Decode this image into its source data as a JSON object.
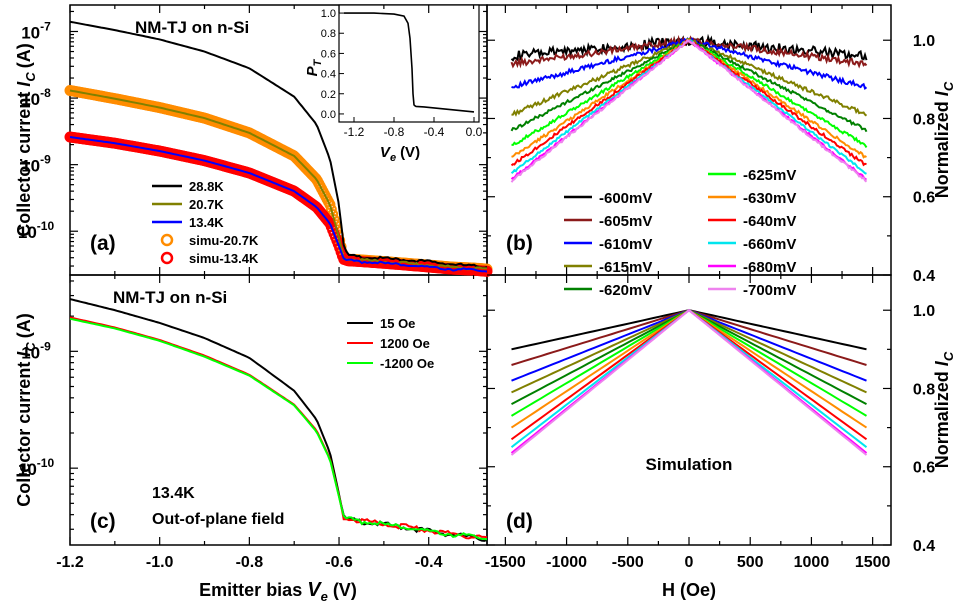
{
  "chart_data": [
    {
      "id": "a",
      "type": "line",
      "panel_label": "(a)",
      "annotation": "NM-TJ on n-Si",
      "ylabel": "Collector current",
      "ylabel_italic": "I",
      "ylabel_sub": "C",
      "ylabel_unit": "(A)",
      "yscale": "log",
      "xlim": [
        -1.2,
        -0.27
      ],
      "ylim": [
        2.2e-11,
        2.5e-07
      ],
      "yticks": [
        {
          "value": 1e-10,
          "base": "10",
          "exp": "-10"
        },
        {
          "value": 1e-09,
          "base": "10",
          "exp": "-9"
        },
        {
          "value": 1e-08,
          "base": "10",
          "exp": "-8"
        },
        {
          "value": 1e-07,
          "base": "10",
          "exp": "-7"
        }
      ],
      "legend_position": "lower-left",
      "series": [
        {
          "name": "28.8K",
          "style": "line",
          "color": "#000000",
          "x": [
            -1.2,
            -1.1,
            -1.0,
            -0.9,
            -0.8,
            -0.7,
            -0.65,
            -0.62,
            -0.6,
            -0.59,
            -0.58,
            -0.55,
            -0.5,
            -0.45,
            -0.4,
            -0.35,
            -0.3,
            -0.27
          ],
          "y": [
            1.4e-07,
            1.05e-07,
            7.6e-08,
            5e-08,
            2.8e-08,
            1.05e-08,
            4e-09,
            1.2e-09,
            2.5e-10,
            6e-11,
            4.3e-11,
            4.1e-11,
            3.9e-11,
            3.7e-11,
            3.5e-11,
            3.2e-11,
            3e-11,
            2.9e-11
          ]
        },
        {
          "name": "20.7K",
          "style": "line",
          "color": "#808000",
          "x": [
            -1.2,
            -1.1,
            -1.0,
            -0.9,
            -0.8,
            -0.7,
            -0.65,
            -0.62,
            -0.6,
            -0.59,
            -0.58,
            -0.55,
            -0.5,
            -0.45,
            -0.4,
            -0.35,
            -0.3,
            -0.27
          ],
          "y": [
            1.3e-08,
            9.8e-09,
            7.2e-09,
            5e-09,
            3e-09,
            1.35e-09,
            6e-10,
            2.5e-10,
            8e-11,
            4e-11,
            3.8e-11,
            3.7e-11,
            3.5e-11,
            3.3e-11,
            3.1e-11,
            2.9e-11,
            2.8e-11,
            2.7e-11
          ]
        },
        {
          "name": "13.4K",
          "style": "line",
          "color": "#0000ff",
          "x": [
            -1.2,
            -1.1,
            -1.0,
            -0.9,
            -0.8,
            -0.7,
            -0.65,
            -0.62,
            -0.6,
            -0.59,
            -0.58,
            -0.55,
            -0.5,
            -0.45,
            -0.4,
            -0.35,
            -0.3,
            -0.27
          ],
          "y": [
            2.6e-09,
            2.1e-09,
            1.6e-09,
            1.15e-09,
            7.5e-10,
            4e-10,
            2.3e-10,
            1.3e-10,
            6e-11,
            3.8e-11,
            3.6e-11,
            3.5e-11,
            3.3e-11,
            3.1e-11,
            2.9e-11,
            2.7e-11,
            2.6e-11,
            2.5e-11
          ]
        },
        {
          "name": "simu-20.7K",
          "style": "markers",
          "color": "#ff8c00",
          "x": [
            -1.2,
            -1.1,
            -1.0,
            -0.9,
            -0.8,
            -0.7,
            -0.65,
            -0.62,
            -0.6,
            -0.59,
            -0.58,
            -0.55,
            -0.5,
            -0.45,
            -0.4,
            -0.35,
            -0.3,
            -0.27
          ],
          "y": [
            1.3e-08,
            9.8e-09,
            7.2e-09,
            5e-09,
            3e-09,
            1.35e-09,
            6e-10,
            2.5e-10,
            8e-11,
            4e-11,
            3.8e-11,
            3.7e-11,
            3.5e-11,
            3.3e-11,
            3.1e-11,
            2.9e-11,
            2.8e-11,
            2.7e-11
          ]
        },
        {
          "name": "simu-13.4K",
          "style": "markers",
          "color": "#ff0000",
          "x": [
            -1.2,
            -1.1,
            -1.0,
            -0.9,
            -0.8,
            -0.7,
            -0.65,
            -0.62,
            -0.6,
            -0.59,
            -0.58,
            -0.55,
            -0.5,
            -0.45,
            -0.4,
            -0.35,
            -0.3,
            -0.27
          ],
          "y": [
            2.6e-09,
            2.1e-09,
            1.6e-09,
            1.15e-09,
            7.5e-10,
            4e-10,
            2.3e-10,
            1.3e-10,
            6e-11,
            3.8e-11,
            3.6e-11,
            3.5e-11,
            3.3e-11,
            3.1e-11,
            2.9e-11,
            2.7e-11,
            2.6e-11,
            2.5e-11
          ]
        }
      ]
    },
    {
      "id": "inset",
      "type": "line",
      "xlabel_italic": "V",
      "xlabel_sub": "e",
      "xlabel_unit": "(V)",
      "ylabel_italic": "P",
      "ylabel_sub": "T",
      "xlim": [
        -1.35,
        0.05
      ],
      "ylim": [
        -0.08,
        1.08
      ],
      "xticks": [
        "-1.2",
        "-0.8",
        "-0.4",
        "0.0"
      ],
      "yticks": [
        "0.0",
        "0.2",
        "0.4",
        "0.6",
        "0.8",
        "1.0"
      ],
      "series": [
        {
          "name": "",
          "color": "#000000",
          "x": [
            -1.3,
            -1.0,
            -0.8,
            -0.7,
            -0.66,
            -0.64,
            -0.62,
            -0.61,
            -0.6,
            -0.59,
            -0.58,
            -0.5,
            -0.3,
            -0.1,
            0.0
          ],
          "y": [
            1.0,
            1.0,
            0.99,
            0.97,
            0.9,
            0.75,
            0.45,
            0.2,
            0.09,
            0.08,
            0.075,
            0.07,
            0.05,
            0.03,
            0.02
          ]
        }
      ]
    },
    {
      "id": "b",
      "type": "line",
      "panel_label": "(b)",
      "ylabel": "Normalized",
      "ylabel_italic": "I",
      "ylabel_sub": "C",
      "xlim": [
        -1650,
        1650
      ],
      "ylim": [
        0.4,
        1.09
      ],
      "yticks": [
        "0.4",
        "0.6",
        "0.8",
        "1.0"
      ],
      "legend_position": "bottom",
      "series": [
        {
          "name": "-600mV",
          "color": "#000000",
          "end": 0.96,
          "noise": 0.012
        },
        {
          "name": "-605mV",
          "color": "#8b1a1a",
          "end": 0.94,
          "noise": 0.008
        },
        {
          "name": "-610mV",
          "color": "#0000ff",
          "end": 0.88,
          "noise": 0.006
        },
        {
          "name": "-615mV",
          "color": "#808000",
          "end": 0.81,
          "noise": 0.005
        },
        {
          "name": "-620mV",
          "color": "#008000",
          "end": 0.77,
          "noise": 0.004
        },
        {
          "name": "-625mV",
          "color": "#00ff00",
          "end": 0.73,
          "noise": 0.004
        },
        {
          "name": "-630mV",
          "color": "#ff8c00",
          "end": 0.7,
          "noise": 0.004
        },
        {
          "name": "-640mV",
          "color": "#ff0000",
          "end": 0.68,
          "noise": 0.004
        },
        {
          "name": "-660mV",
          "color": "#00e5ee",
          "end": 0.66,
          "noise": 0.003
        },
        {
          "name": "-680mV",
          "color": "#ff00ff",
          "end": 0.645,
          "noise": 0.003
        },
        {
          "name": "-700mV",
          "color": "#ee82ee",
          "end": 0.64,
          "noise": 0.003
        }
      ]
    },
    {
      "id": "c",
      "type": "line",
      "panel_label": "(c)",
      "annotation": "NM-TJ on n-Si",
      "annotation2": "13.4K",
      "annotation3": "Out-of-plane field",
      "xlabel": "Emitter bias",
      "xlabel_italic": "V",
      "xlabel_sub": "e",
      "xlabel_unit": "(V)",
      "ylabel": "Collector current",
      "ylabel_italic": "I",
      "ylabel_sub": "C",
      "ylabel_unit": "(A)",
      "yscale": "log",
      "xlim": [
        -1.2,
        -0.27
      ],
      "ylim": [
        2.2e-11,
        4.5e-09
      ],
      "xticks": [
        "-1.2",
        "-1.0",
        "-0.8",
        "-0.6",
        "-0.4"
      ],
      "yticks": [
        {
          "value": 1e-10,
          "base": "10",
          "exp": "-10"
        },
        {
          "value": 1e-09,
          "base": "10",
          "exp": "-9"
        }
      ],
      "legend_position": "top-right",
      "series": [
        {
          "name": "15 Oe",
          "color": "#000000",
          "x": [
            -1.2,
            -1.1,
            -1.0,
            -0.9,
            -0.8,
            -0.7,
            -0.65,
            -0.62,
            -0.6,
            -0.59,
            -0.58,
            -0.55,
            -0.5,
            -0.45,
            -0.4,
            -0.35,
            -0.3,
            -0.27
          ],
          "y": [
            2.8e-09,
            2.25e-09,
            1.75e-09,
            1.3e-09,
            8.8e-10,
            4.6e-10,
            2.6e-10,
            1.35e-10,
            6e-11,
            3.8e-11,
            3.6e-11,
            3.5e-11,
            3.3e-11,
            3.1e-11,
            2.9e-11,
            2.7e-11,
            2.55e-11,
            2.45e-11
          ]
        },
        {
          "name": "1200 Oe",
          "color": "#ff0000",
          "x": [
            -1.2,
            -1.1,
            -1.0,
            -0.9,
            -0.8,
            -0.7,
            -0.65,
            -0.62,
            -0.6,
            -0.59,
            -0.58,
            -0.55,
            -0.5,
            -0.45,
            -0.4,
            -0.35,
            -0.3,
            -0.27
          ],
          "y": [
            1.95e-09,
            1.6e-09,
            1.25e-09,
            9.2e-10,
            6.3e-10,
            3.5e-10,
            2.1e-10,
            1.2e-10,
            5.8e-11,
            3.8e-11,
            3.7e-11,
            3.55e-11,
            3.35e-11,
            3.15e-11,
            2.95e-11,
            2.75e-11,
            2.6e-11,
            2.5e-11
          ]
        },
        {
          "name": "-1200 Oe",
          "color": "#00ff00",
          "x": [
            -1.2,
            -1.1,
            -1.0,
            -0.9,
            -0.8,
            -0.7,
            -0.65,
            -0.62,
            -0.6,
            -0.59,
            -0.58,
            -0.55,
            -0.5,
            -0.45,
            -0.4,
            -0.35,
            -0.3,
            -0.27
          ],
          "y": [
            1.9e-09,
            1.57e-09,
            1.23e-09,
            9e-10,
            6.2e-10,
            3.45e-10,
            2.05e-10,
            1.18e-10,
            5.7e-11,
            3.8e-11,
            3.65e-11,
            3.5e-11,
            3.3e-11,
            3.1e-11,
            2.9e-11,
            2.72e-11,
            2.58e-11,
            2.48e-11
          ]
        }
      ]
    },
    {
      "id": "d",
      "type": "line",
      "panel_label": "(d)",
      "annotation": "Simulation",
      "xlabel": "H (Oe)",
      "ylabel": "Normalized",
      "ylabel_italic": "I",
      "ylabel_sub": "C",
      "xlim": [
        -1650,
        1650
      ],
      "ylim": [
        0.4,
        1.09
      ],
      "xticks": [
        "-1500",
        "-1000",
        "-500",
        "0",
        "500",
        "1000",
        "1500"
      ],
      "yticks": [
        "0.4",
        "0.6",
        "0.8",
        "1.0"
      ],
      "series": [
        {
          "name": "-600mV",
          "color": "#000000",
          "end": 0.9
        },
        {
          "name": "-605mV",
          "color": "#8b1a1a",
          "end": 0.86
        },
        {
          "name": "-610mV",
          "color": "#0000ff",
          "end": 0.82
        },
        {
          "name": "-615mV",
          "color": "#808000",
          "end": 0.79
        },
        {
          "name": "-620mV",
          "color": "#008000",
          "end": 0.76
        },
        {
          "name": "-625mV",
          "color": "#00ff00",
          "end": 0.73
        },
        {
          "name": "-630mV",
          "color": "#ff8c00",
          "end": 0.7
        },
        {
          "name": "-640mV",
          "color": "#ff0000",
          "end": 0.67
        },
        {
          "name": "-660mV",
          "color": "#00e5ee",
          "end": 0.65
        },
        {
          "name": "-680mV",
          "color": "#ff00ff",
          "end": 0.635
        },
        {
          "name": "-700mV",
          "color": "#ee82ee",
          "end": 0.63
        }
      ]
    }
  ]
}
